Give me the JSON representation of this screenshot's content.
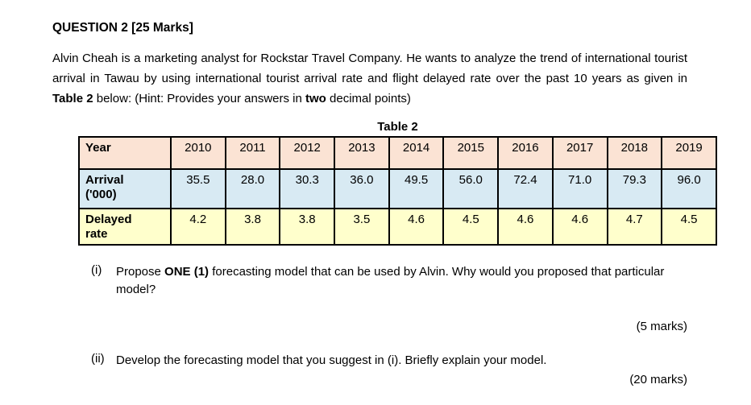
{
  "question": {
    "title": "QUESTION 2 [25 Marks]",
    "intro": {
      "part1": "Alvin Cheah is a marketing analyst for Rockstar Travel Company. He wants to analyze the trend of international tourist arrival in Tawau by using international tourist arrival rate and flight delayed rate over the past 10 years as given in ",
      "bold1": "Table 2",
      "part2": " below: (Hint: Provides your answers in ",
      "bold2": "two",
      "part3": " decimal points)"
    }
  },
  "table": {
    "caption": "Table 2",
    "row_headers": {
      "year": "Year",
      "arrival_line1": "Arrival",
      "arrival_line2": "('000)",
      "delayed_line1": "Delayed",
      "delayed_line2": "rate"
    },
    "years": [
      "2010",
      "2011",
      "2012",
      "2013",
      "2014",
      "2015",
      "2016",
      "2017",
      "2018",
      "2019"
    ],
    "arrival": [
      "35.5",
      "28.0",
      "30.3",
      "36.0",
      "49.5",
      "56.0",
      "72.4",
      "71.0",
      "79.3",
      "96.0"
    ],
    "delayed": [
      "4.2",
      "3.8",
      "3.8",
      "3.5",
      "4.6",
      "4.5",
      "4.6",
      "4.6",
      "4.7",
      "4.5"
    ]
  },
  "subquestions": {
    "i": {
      "label": "(i)",
      "part1": "Propose ",
      "bold": "ONE (1)",
      "part2": " forecasting model that can be used by Alvin. Why would you proposed that particular model?",
      "marks": "(5 marks)"
    },
    "ii": {
      "label": "(ii)",
      "text": "Develop the forecasting model that you suggest in (i). Briefly explain your model.",
      "marks": "(20 marks)"
    }
  },
  "colors": {
    "year_row": "#fbe3d4",
    "arrival_row": "#d8eaf3",
    "delayed_row": "#ffffcc",
    "border": "#000000"
  }
}
